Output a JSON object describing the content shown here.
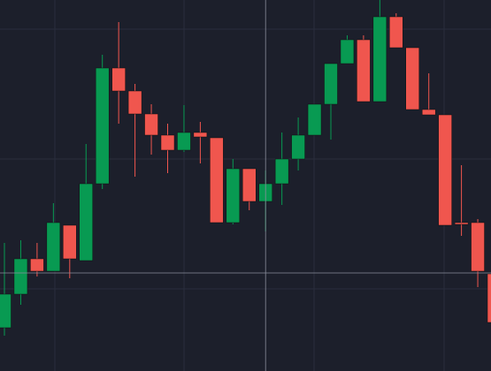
{
  "chart_data": {
    "type": "candlestick",
    "open": [
      49,
      87,
      127,
      113,
      165,
      125,
      212,
      343,
      317,
      291,
      267,
      250,
      270,
      264,
      168,
      229,
      192,
      212,
      240,
      267,
      302,
      348,
      375,
      305,
      401,
      366,
      296,
      290,
      168,
      168,
      110
    ],
    "high": [
      145,
      148,
      145,
      190,
      165,
      257,
      358,
      395,
      325,
      302,
      280,
      301,
      282,
      264,
      240,
      229,
      227,
      270,
      287,
      302,
      348,
      380,
      380,
      420,
      405,
      366,
      337,
      290,
      233,
      172,
      110
    ],
    "low": [
      40,
      75,
      107,
      113,
      105,
      125,
      206,
      280,
      220,
      245,
      224,
      248,
      235,
      168,
      166,
      182,
      158,
      188,
      227,
      267,
      262,
      348,
      305,
      305,
      366,
      296,
      290,
      165,
      153,
      95,
      55
    ],
    "close": [
      87,
      127,
      113,
      168,
      127,
      212,
      343,
      317,
      291,
      267,
      250,
      270,
      265,
      168,
      229,
      192,
      212,
      240,
      267,
      302,
      348,
      375,
      305,
      401,
      366,
      296,
      290,
      165,
      166,
      113,
      55
    ],
    "up_color": "#089a52",
    "down_color": "#f0564e",
    "ylim": [
      0,
      420
    ],
    "grid": true,
    "crosshair": {
      "index": 16,
      "value": 111
    }
  }
}
